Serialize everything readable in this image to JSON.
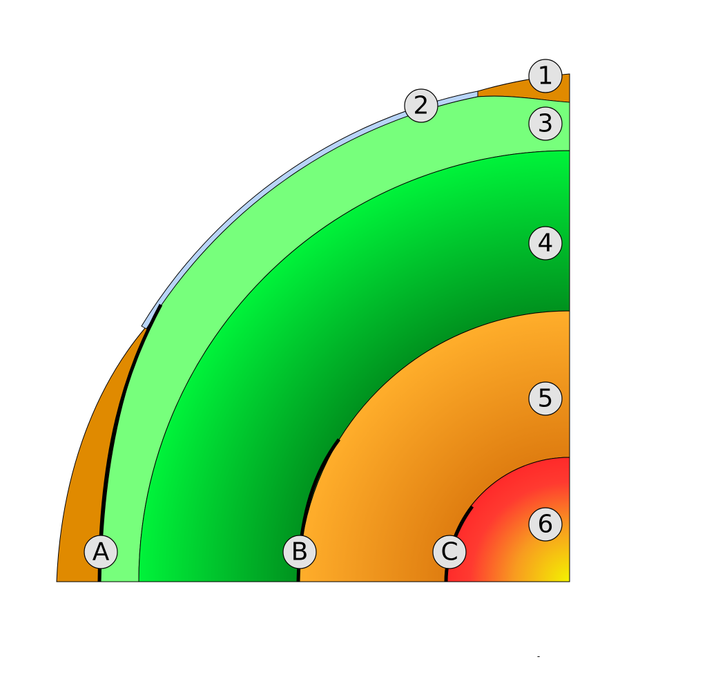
{
  "layers": [
    {
      "id": "1",
      "label": "1"
    },
    {
      "id": "2",
      "label": "2"
    },
    {
      "id": "3",
      "label": "3"
    },
    {
      "id": "4",
      "label": "4"
    },
    {
      "id": "5",
      "label": "5"
    },
    {
      "id": "6",
      "label": "6"
    }
  ],
  "boundaries": [
    {
      "id": "A",
      "label": "A"
    },
    {
      "id": "B",
      "label": "B"
    },
    {
      "id": "C",
      "label": "C"
    }
  ],
  "footer_mark": "-",
  "colors": {
    "continental_crust": "#e08a00",
    "oceanic_crust": "#b8d4f8",
    "upper_mantle": "#77ff7c",
    "lower_mantle_light": "#00f33a",
    "lower_mantle_dark": "#008a1c",
    "outer_core_light": "#ffad2a",
    "outer_core_dark": "#e07f10",
    "inner_core_red": "#ff2a2a",
    "inner_core_yellow": "#f2f200"
  }
}
